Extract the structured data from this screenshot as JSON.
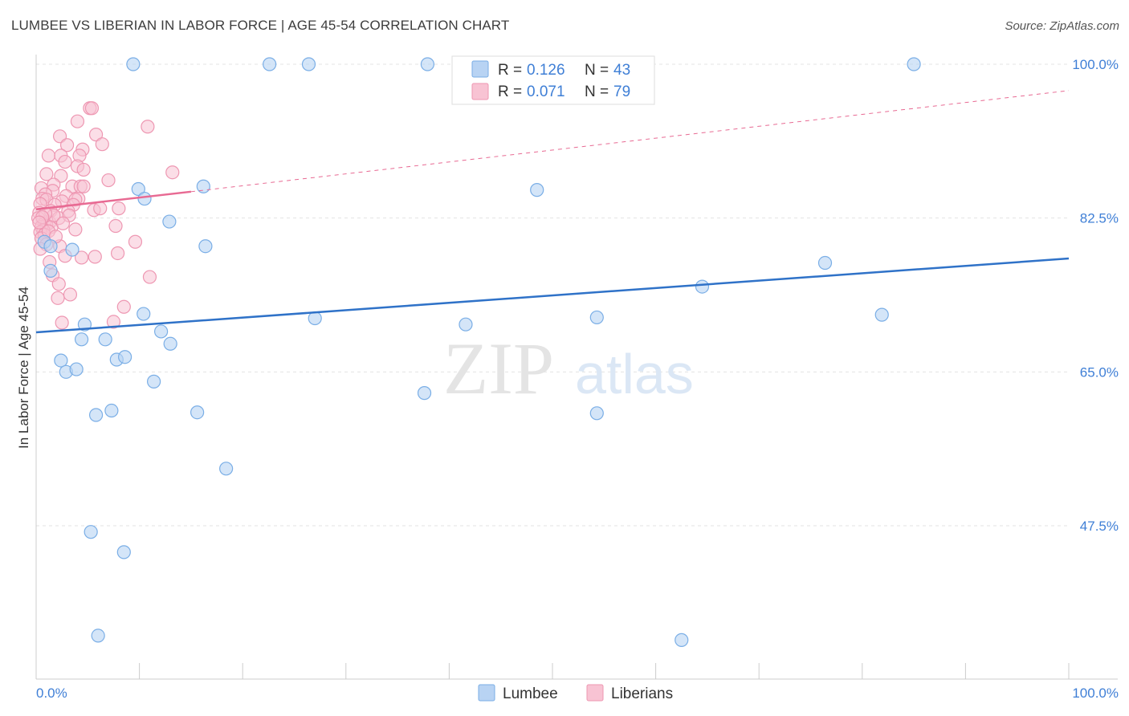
{
  "title": "LUMBEE VS LIBERIAN IN LABOR FORCE | AGE 45-54 CORRELATION CHART",
  "source": "Source: ZipAtlas.com",
  "watermark": {
    "zip": "ZIP",
    "atlas": "atlas"
  },
  "colors": {
    "lumbee_fill": "#b8d3f3",
    "lumbee_stroke": "#7aaee6",
    "lumbee_line": "#2f72c8",
    "liberian_fill": "#f8c3d3",
    "liberian_stroke": "#ee97b2",
    "liberian_line": "#e86a93",
    "tick_text": "#3f7fd6",
    "grid": "#e3e3e3"
  },
  "legend": {
    "rows": [
      {
        "r_label": "R =",
        "r_value": "0.126",
        "n_label": "N =",
        "n_value": "43",
        "series": "lumbee"
      },
      {
        "r_label": "R =",
        "r_value": "0.071",
        "n_label": "N =",
        "n_value": "79",
        "series": "liberian"
      }
    ]
  },
  "bottom_legend": [
    "Lumbee",
    "Liberians"
  ],
  "chart_data": {
    "type": "scatter",
    "title": "LUMBEE VS LIBERIAN IN LABOR FORCE | AGE 45-54 CORRELATION CHART",
    "xlabel": "",
    "ylabel": "In Labor Force | Age 45-54",
    "xlim": [
      0,
      100
    ],
    "ylim": [
      32,
      100
    ],
    "x_tick_labels": [
      "0.0%",
      "100.0%"
    ],
    "y_ticks": [
      47.5,
      65.0,
      82.5,
      100.0
    ],
    "y_tick_labels": [
      "47.5%",
      "65.0%",
      "82.5%",
      "100.0%"
    ],
    "grid": true,
    "legend_position": "top-center",
    "series": [
      {
        "name": "Lumbee",
        "color": "#b8d3f3",
        "trend": {
          "x": [
            0,
            100
          ],
          "y": [
            69.5,
            77.9
          ]
        },
        "points": [
          [
            9.4,
            100
          ],
          [
            22.6,
            100
          ],
          [
            37.9,
            100
          ],
          [
            85.0,
            100
          ],
          [
            9.9,
            85.8
          ],
          [
            10.5,
            84.7
          ],
          [
            16.2,
            86.1
          ],
          [
            12.9,
            82.1
          ],
          [
            16.4,
            79.3
          ],
          [
            0.8,
            79.8
          ],
          [
            1.4,
            79.3
          ],
          [
            1.4,
            76.5
          ],
          [
            3.5,
            78.9
          ],
          [
            48.5,
            85.7
          ],
          [
            64.5,
            74.7
          ],
          [
            76.4,
            77.4
          ],
          [
            10.4,
            71.6
          ],
          [
            27.0,
            71.1
          ],
          [
            4.7,
            70.4
          ],
          [
            12.1,
            69.6
          ],
          [
            4.4,
            68.7
          ],
          [
            6.7,
            68.7
          ],
          [
            13.0,
            68.2
          ],
          [
            41.6,
            70.4
          ],
          [
            54.3,
            71.2
          ],
          [
            81.9,
            71.5
          ],
          [
            2.4,
            66.3
          ],
          [
            7.8,
            66.4
          ],
          [
            8.6,
            66.7
          ],
          [
            2.9,
            65.0
          ],
          [
            3.9,
            65.3
          ],
          [
            11.4,
            63.9
          ],
          [
            37.6,
            62.6
          ],
          [
            7.3,
            60.6
          ],
          [
            5.8,
            60.1
          ],
          [
            15.6,
            60.4
          ],
          [
            54.3,
            60.3
          ],
          [
            18.4,
            54.0
          ],
          [
            5.3,
            46.8
          ],
          [
            8.5,
            44.5
          ],
          [
            6.0,
            35.0
          ],
          [
            62.5,
            34.5
          ],
          [
            26.4,
            100
          ]
        ]
      },
      {
        "name": "Liberians",
        "color": "#f8c3d3",
        "trend": {
          "x": [
            0,
            15
          ],
          "y": [
            83.5,
            85.5
          ]
        },
        "trend_ext": {
          "x": [
            15,
            100
          ],
          "y": [
            85.5,
            97.0
          ]
        },
        "points": [
          [
            5.2,
            95.0
          ],
          [
            5.4,
            95.0
          ],
          [
            4.0,
            93.5
          ],
          [
            10.8,
            92.9
          ],
          [
            2.3,
            91.8
          ],
          [
            5.8,
            92.0
          ],
          [
            3.0,
            90.8
          ],
          [
            6.4,
            90.9
          ],
          [
            4.5,
            90.3
          ],
          [
            1.2,
            89.6
          ],
          [
            4.2,
            89.6
          ],
          [
            2.4,
            89.6
          ],
          [
            2.8,
            88.9
          ],
          [
            4.0,
            88.4
          ],
          [
            4.6,
            88.0
          ],
          [
            13.2,
            87.7
          ],
          [
            1.0,
            87.5
          ],
          [
            2.4,
            87.3
          ],
          [
            7.0,
            86.8
          ],
          [
            1.7,
            86.3
          ],
          [
            3.5,
            86.1
          ],
          [
            4.3,
            86.1
          ],
          [
            4.6,
            86.1
          ],
          [
            0.5,
            85.9
          ],
          [
            1.6,
            85.6
          ],
          [
            0.9,
            85.2
          ],
          [
            0.6,
            84.7
          ],
          [
            2.9,
            85.0
          ],
          [
            4.1,
            84.7
          ],
          [
            1.0,
            84.6
          ],
          [
            3.8,
            84.6
          ],
          [
            2.5,
            84.4
          ],
          [
            3.6,
            84.0
          ],
          [
            0.4,
            84.1
          ],
          [
            1.8,
            84.0
          ],
          [
            8.0,
            83.6
          ],
          [
            5.6,
            83.4
          ],
          [
            3.1,
            83.3
          ],
          [
            0.3,
            83.1
          ],
          [
            1.4,
            83.3
          ],
          [
            0.2,
            82.5
          ],
          [
            1.3,
            82.0
          ],
          [
            0.8,
            81.9
          ],
          [
            1.0,
            81.7
          ],
          [
            1.5,
            81.5
          ],
          [
            0.5,
            81.5
          ],
          [
            0.7,
            81.1
          ],
          [
            7.7,
            81.6
          ],
          [
            3.8,
            81.2
          ],
          [
            0.4,
            80.9
          ],
          [
            0.8,
            80.6
          ],
          [
            0.5,
            80.2
          ],
          [
            9.6,
            79.8
          ],
          [
            1.0,
            79.5
          ],
          [
            2.3,
            79.3
          ],
          [
            0.4,
            79.0
          ],
          [
            2.8,
            78.2
          ],
          [
            5.7,
            78.1
          ],
          [
            4.4,
            78.0
          ],
          [
            7.9,
            78.5
          ],
          [
            1.3,
            77.5
          ],
          [
            1.6,
            76.0
          ],
          [
            11.0,
            75.8
          ],
          [
            2.2,
            75.0
          ],
          [
            3.3,
            73.8
          ],
          [
            2.1,
            73.4
          ],
          [
            8.5,
            72.4
          ],
          [
            2.5,
            70.6
          ],
          [
            7.5,
            70.7
          ],
          [
            2.2,
            82.5
          ],
          [
            3.2,
            82.8
          ],
          [
            1.7,
            82.8
          ],
          [
            0.9,
            83.0
          ],
          [
            0.6,
            82.6
          ],
          [
            1.2,
            81.0
          ],
          [
            2.6,
            81.9
          ],
          [
            6.2,
            83.6
          ],
          [
            1.9,
            80.4
          ],
          [
            0.3,
            82.0
          ]
        ]
      }
    ]
  }
}
